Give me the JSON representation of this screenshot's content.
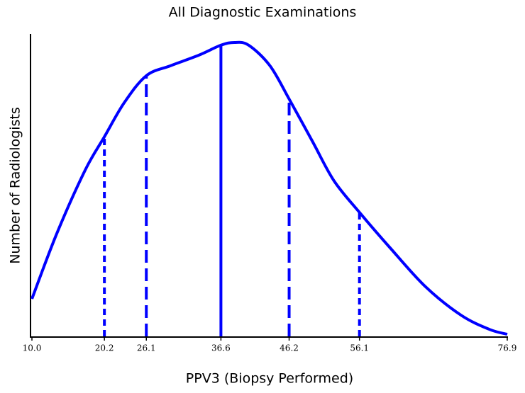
{
  "chart_data": {
    "type": "line",
    "title": "All Diagnostic Examinations",
    "x_label": "PPV3 (Biopsy Performed)",
    "y_label": "Number of Radiologists",
    "color": "#0000ff",
    "x": [
      10.0,
      13.5,
      17.5,
      20.2,
      23.0,
      26.1,
      29.5,
      33.5,
      36.6,
      38.5,
      40.5,
      43.5,
      46.2,
      49.5,
      52.5,
      56.1,
      60.4,
      65.4,
      70.4,
      74.4,
      76.9
    ],
    "values": [
      12.4,
      34,
      55,
      66,
      77.3,
      86.2,
      89.5,
      93,
      96.3,
      97.2,
      96.3,
      89.5,
      78.5,
      64.4,
      51.5,
      41,
      29.3,
      16.4,
      7.0,
      2.3,
      0.7
    ],
    "reference_lines": {
      "x": [
        20.2,
        26.1,
        36.6,
        46.2,
        56.1
      ],
      "values": [
        66,
        86.2,
        96.3,
        78.5,
        41
      ],
      "dash": [
        "dotted",
        "dashed",
        "solid",
        "dashed",
        "dotted"
      ]
    },
    "xlim": [
      10.0,
      76.9
    ],
    "ylim": [
      0,
      100
    ],
    "xticks": [
      {
        "value": 10.0,
        "label": "10.0"
      },
      20.2,
      26.1,
      36.6,
      46.2,
      56.1,
      76.9
    ]
  }
}
